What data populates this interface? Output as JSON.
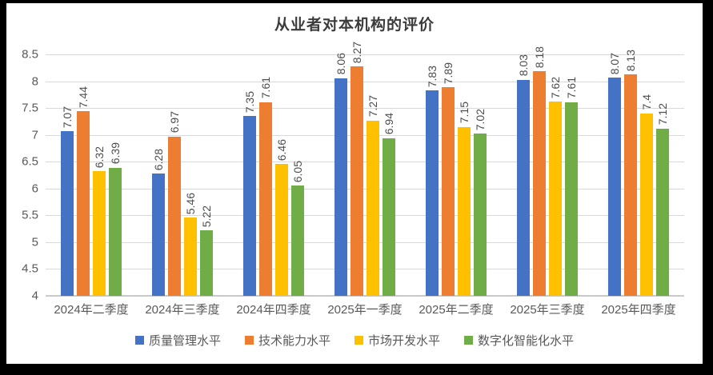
{
  "window": {
    "background": "#000000",
    "canvas_background": "#ffffff"
  },
  "chart_data": {
    "type": "bar",
    "title": "从业者对本机构的评价",
    "categories": [
      "2024年二季度",
      "2024年三季度",
      "2024年四季度",
      "2025年一季度",
      "2025年二季度",
      "2025年三季度",
      "2025年四季度"
    ],
    "series": [
      {
        "name": "质量管理水平",
        "color": "#4472C4",
        "values": [
          7.07,
          6.28,
          7.35,
          8.06,
          7.83,
          8.03,
          8.07
        ]
      },
      {
        "name": "技术能力水平",
        "color": "#ED7D31",
        "values": [
          7.44,
          6.97,
          7.61,
          8.27,
          7.89,
          8.18,
          8.13
        ]
      },
      {
        "name": "市场开发水平",
        "color": "#FFC000",
        "values": [
          6.32,
          5.46,
          6.46,
          7.27,
          7.15,
          7.62,
          7.4
        ]
      },
      {
        "name": "数字化智能化水平",
        "color": "#70AD47",
        "values": [
          6.39,
          5.22,
          6.05,
          6.94,
          7.02,
          7.61,
          7.12
        ]
      }
    ],
    "ylim": [
      4,
      8.5
    ],
    "ytick_step": 0.5,
    "yticks": [
      "8.5",
      "8",
      "7.5",
      "7",
      "6.5",
      "6",
      "5.5",
      "5",
      "4.5",
      "4"
    ],
    "grid": true,
    "legend_position": "bottom",
    "data_labels_rotated": true,
    "style": {
      "title_color": "#3b3b3b",
      "axis_text_color": "#595959",
      "data_label_color": "#4d4d4d",
      "grid_color": "#d9d9d9",
      "axis_line_color": "#c9c9c9"
    }
  }
}
